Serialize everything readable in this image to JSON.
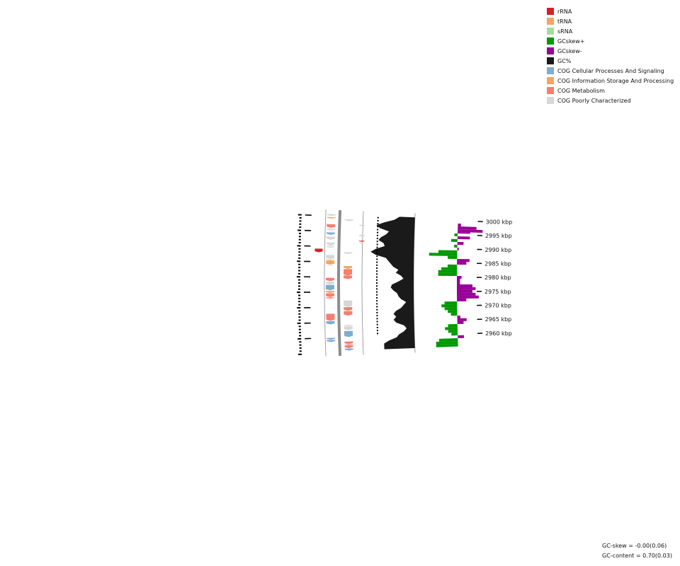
{
  "ticks": [
    {
      "label": "3000 kbp",
      "value": 3000
    },
    {
      "label": "2995 kbp",
      "value": 2995
    },
    {
      "label": "2990 kbp",
      "value": 2990
    },
    {
      "label": "2985 kbp",
      "value": 2985
    },
    {
      "label": "2980 kbp",
      "value": 2980
    },
    {
      "label": "2975 kbp",
      "value": 2975
    },
    {
      "label": "2970 kbp",
      "value": 2970
    },
    {
      "label": "2965 kbp",
      "value": 2965
    },
    {
      "label": "2960 kbp",
      "value": 2960
    }
  ],
  "legend": [
    {
      "label": "rRNA",
      "color": "#d62027"
    },
    {
      "label": "tRNA",
      "color": "#f5a55d"
    },
    {
      "label": "sRNA",
      "color": "#a6dba0"
    },
    {
      "label": "GCskew+",
      "color": "#009900"
    },
    {
      "label": "GCskew-",
      "color": "#990099"
    },
    {
      "label": "GC%",
      "color": "#1a1a1a"
    },
    {
      "label": "COG Cellular Processes And Signaling",
      "color": "#7eadd1"
    },
    {
      "label": "COG Information Storage And Processing",
      "color": "#f5a55d"
    },
    {
      "label": "COG Metabolism",
      "color": "#f47f72"
    },
    {
      "label": "COG Poorly Characterized",
      "color": "#d7d7d7"
    }
  ],
  "stats": {
    "gc_skew": "GC-skew = -0.00(0.06)",
    "gc_content": "GC-content = 0.70(0.03)"
  },
  "features": [
    {
      "track": "outer",
      "start": 3000.6,
      "end": 3000.0,
      "cat": "COG Poorly Characterized"
    },
    {
      "track": "outer",
      "start": 2999.6,
      "end": 2999.2,
      "cat": "tRNA"
    },
    {
      "track": "outer",
      "start": 2997.3,
      "end": 2996.1,
      "cat": "COG Metabolism"
    },
    {
      "track": "outer",
      "start": 2995.9,
      "end": 2995.6,
      "cat": "COG Poorly Characterized"
    },
    {
      "track": "outer",
      "start": 2995.6,
      "end": 2995.3,
      "cat": "COG Poorly Characterized"
    },
    {
      "track": "outer",
      "start": 2994.6,
      "end": 2993.8,
      "cat": "COG Cellular Processes And Signaling"
    },
    {
      "track": "outer",
      "start": 2993.2,
      "end": 2992.2,
      "cat": "COG Poorly Characterized"
    },
    {
      "track": "outer",
      "start": 2991.3,
      "end": 2990.5,
      "cat": "COG Poorly Characterized"
    },
    {
      "track": "outer",
      "start": 2990.5,
      "end": 2990.2,
      "cat": "COG Poorly Characterized"
    },
    {
      "track": "outer",
      "start": 2990.0,
      "end": 2989.6,
      "cat": "COG Poorly Characterized"
    },
    {
      "track": "outer",
      "start": 2987.2,
      "end": 2985.8,
      "cat": "COG Poorly Characterized"
    },
    {
      "track": "outer",
      "start": 2985.6,
      "end": 2985.2,
      "cat": "tRNA"
    },
    {
      "track": "outer",
      "start": 2985.2,
      "end": 2984.0,
      "cat": "tRNA"
    },
    {
      "track": "outer",
      "start": 2983.8,
      "end": 2983.6,
      "cat": "COG Poorly Characterized"
    },
    {
      "track": "outer",
      "start": 2979.7,
      "end": 2978.6,
      "cat": "COG Metabolism"
    },
    {
      "track": "outer",
      "start": 2978.4,
      "end": 2977.5,
      "cat": "COG Poorly Characterized"
    },
    {
      "track": "outer",
      "start": 2977.4,
      "end": 2975.6,
      "cat": "COG Cellular Processes And Signaling"
    },
    {
      "track": "outer",
      "start": 2975.4,
      "end": 2974.7,
      "cat": "tRNA"
    },
    {
      "track": "outer",
      "start": 2974.6,
      "end": 2973.4,
      "cat": "COG Metabolism"
    },
    {
      "track": "outer",
      "start": 2973.3,
      "end": 2972.9,
      "cat": "COG Metabolism"
    },
    {
      "track": "outer",
      "start": 2967.9,
      "end": 2965.6,
      "cat": "COG Metabolism"
    },
    {
      "track": "outer",
      "start": 2965.5,
      "end": 2964.4,
      "cat": "COG Cellular Processes And Signaling"
    },
    {
      "track": "outer",
      "start": 2960.0,
      "end": 2959.4,
      "cat": "COG Cellular Processes And Signaling"
    },
    {
      "track": "outer",
      "start": 2959.3,
      "end": 2958.6,
      "cat": "COG Cellular Processes And Signaling"
    },
    {
      "track": "outer",
      "start": 2989.2,
      "end": 2988.0,
      "cat": "rRNA",
      "ring": "rna-outer"
    },
    {
      "track": "inner",
      "start": 2999.1,
      "end": 2998.5,
      "cat": "COG Poorly Characterized"
    },
    {
      "track": "inner",
      "start": 2988.2,
      "end": 2987.6,
      "cat": "COG Poorly Characterized"
    },
    {
      "track": "inner",
      "start": 2983.6,
      "end": 2982.7,
      "cat": "tRNA"
    },
    {
      "track": "inner",
      "start": 2982.6,
      "end": 2980.5,
      "cat": "COG Metabolism"
    },
    {
      "track": "inner",
      "start": 2980.5,
      "end": 2979.3,
      "cat": "COG Metabolism"
    },
    {
      "track": "inner",
      "start": 2972.2,
      "end": 2970.1,
      "cat": "COG Poorly Characterized"
    },
    {
      "track": "inner",
      "start": 2970.0,
      "end": 2968.8,
      "cat": "COG Metabolism"
    },
    {
      "track": "inner",
      "start": 2968.7,
      "end": 2967.2,
      "cat": "COG Metabolism"
    },
    {
      "track": "inner",
      "start": 2964.1,
      "end": 2963.7,
      "cat": "COG Poorly Characterized"
    },
    {
      "track": "inner",
      "start": 2963.6,
      "end": 2962.4,
      "cat": "COG Poorly Characterized"
    },
    {
      "track": "inner",
      "start": 2962.1,
      "end": 2960.1,
      "cat": "COG Cellular Processes And Signaling"
    },
    {
      "track": "inner",
      "start": 2958.6,
      "end": 2957.7,
      "cat": "COG Metabolism"
    },
    {
      "track": "inner",
      "start": 2957.6,
      "end": 2957.2,
      "cat": "COG Metabolism"
    },
    {
      "track": "inner",
      "start": 2957.2,
      "end": 2956.4,
      "cat": "COG Metabolism"
    },
    {
      "track": "inner",
      "start": 2956.3,
      "end": 2955.6,
      "cat": "COG Cellular Processes And Signaling"
    },
    {
      "track": "inner2",
      "start": 2997.4,
      "end": 2997.0,
      "cat": "COG Poorly Characterized"
    },
    {
      "track": "inner2",
      "start": 2994.1,
      "end": 2993.8,
      "cat": "COG Poorly Characterized"
    },
    {
      "track": "inner2",
      "start": 2993.8,
      "end": 2993.5,
      "cat": "COG Poorly Characterized"
    },
    {
      "track": "inner2",
      "start": 2991.5,
      "end": 2991.2,
      "cat": "COG Poorly Characterized"
    },
    {
      "track": "inner2",
      "start": 2992.1,
      "end": 2991.8,
      "cat": "rRNA"
    }
  ],
  "gc_content": [
    {
      "kbp": 3000.6,
      "v": 0.62
    },
    {
      "kbp": 2999.5,
      "v": 0.66
    },
    {
      "kbp": 2998.5,
      "v": 0.74
    },
    {
      "kbp": 2997.5,
      "v": 0.8
    },
    {
      "kbp": 2996.5,
      "v": 0.77
    },
    {
      "kbp": 2995.5,
      "v": 0.7
    },
    {
      "kbp": 2994.5,
      "v": 0.72
    },
    {
      "kbp": 2993.5,
      "v": 0.76
    },
    {
      "kbp": 2992.5,
      "v": 0.78
    },
    {
      "kbp": 2991.5,
      "v": 0.74
    },
    {
      "kbp": 2990.5,
      "v": 0.73
    },
    {
      "kbp": 2989.5,
      "v": 0.8
    },
    {
      "kbp": 2988.5,
      "v": 0.84
    },
    {
      "kbp": 2987.5,
      "v": 0.8
    },
    {
      "kbp": 2986.5,
      "v": 0.72
    },
    {
      "kbp": 2985.5,
      "v": 0.7
    },
    {
      "kbp": 2984.5,
      "v": 0.68
    },
    {
      "kbp": 2983.5,
      "v": 0.66
    },
    {
      "kbp": 2982.5,
      "v": 0.62
    },
    {
      "kbp": 2981.5,
      "v": 0.64
    },
    {
      "kbp": 2980.5,
      "v": 0.6
    },
    {
      "kbp": 2979.5,
      "v": 0.58
    },
    {
      "kbp": 2978.5,
      "v": 0.62
    },
    {
      "kbp": 2977.5,
      "v": 0.67
    },
    {
      "kbp": 2976.5,
      "v": 0.68
    },
    {
      "kbp": 2975.5,
      "v": 0.66
    },
    {
      "kbp": 2974.5,
      "v": 0.63
    },
    {
      "kbp": 2973.5,
      "v": 0.62
    },
    {
      "kbp": 2972.5,
      "v": 0.6
    },
    {
      "kbp": 2971.5,
      "v": 0.56
    },
    {
      "kbp": 2970.5,
      "v": 0.58
    },
    {
      "kbp": 2969.5,
      "v": 0.6
    },
    {
      "kbp": 2968.5,
      "v": 0.64
    },
    {
      "kbp": 2967.5,
      "v": 0.66
    },
    {
      "kbp": 2966.5,
      "v": 0.64
    },
    {
      "kbp": 2965.5,
      "v": 0.66
    },
    {
      "kbp": 2964.5,
      "v": 0.64
    },
    {
      "kbp": 2963.5,
      "v": 0.58
    },
    {
      "kbp": 2962.5,
      "v": 0.56
    },
    {
      "kbp": 2961.5,
      "v": 0.58
    },
    {
      "kbp": 2960.5,
      "v": 0.62
    },
    {
      "kbp": 2959.5,
      "v": 0.64
    },
    {
      "kbp": 2958.5,
      "v": 0.7
    },
    {
      "kbp": 2957.5,
      "v": 0.74
    },
    {
      "kbp": 2956.5,
      "v": 0.74
    },
    {
      "kbp": 2955.6,
      "v": 0.74
    }
  ],
  "gc_skew": [
    {
      "kbp": 3000.6,
      "v": 0.0
    },
    {
      "kbp": 2999.0,
      "v": -0.02
    },
    {
      "kbp": 2998.0,
      "v": -0.12
    },
    {
      "kbp": 2997.0,
      "v": -0.16
    },
    {
      "kbp": 2996.0,
      "v": -0.08
    },
    {
      "kbp": 2995.5,
      "v": 0.02
    },
    {
      "kbp": 2994.5,
      "v": -0.08
    },
    {
      "kbp": 2993.5,
      "v": 0.04
    },
    {
      "kbp": 2992.5,
      "v": -0.04
    },
    {
      "kbp": 2991.5,
      "v": 0.02
    },
    {
      "kbp": 2990.5,
      "v": -0.01
    },
    {
      "kbp": 2989.5,
      "v": 0.12
    },
    {
      "kbp": 2988.5,
      "v": 0.18
    },
    {
      "kbp": 2987.5,
      "v": 0.06
    },
    {
      "kbp": 2986.5,
      "v": -0.08
    },
    {
      "kbp": 2985.5,
      "v": -0.06
    },
    {
      "kbp": 2984.5,
      "v": 0.06
    },
    {
      "kbp": 2983.5,
      "v": 0.1
    },
    {
      "kbp": 2982.5,
      "v": 0.12
    },
    {
      "kbp": 2981.5,
      "v": 0.12
    },
    {
      "kbp": 2980.5,
      "v": -0.03
    },
    {
      "kbp": 2979.5,
      "v": -0.02
    },
    {
      "kbp": 2978.5,
      "v": -0.02
    },
    {
      "kbp": 2977.5,
      "v": -0.1
    },
    {
      "kbp": 2976.5,
      "v": -0.12
    },
    {
      "kbp": 2975.5,
      "v": -0.1
    },
    {
      "kbp": 2974.5,
      "v": -0.12
    },
    {
      "kbp": 2973.5,
      "v": -0.14
    },
    {
      "kbp": 2972.5,
      "v": -0.06
    },
    {
      "kbp": 2971.5,
      "v": 0.08
    },
    {
      "kbp": 2970.5,
      "v": 0.1
    },
    {
      "kbp": 2969.5,
      "v": 0.08
    },
    {
      "kbp": 2968.5,
      "v": 0.06
    },
    {
      "kbp": 2967.5,
      "v": 0.04
    },
    {
      "kbp": 2966.5,
      "v": -0.02
    },
    {
      "kbp": 2965.5,
      "v": -0.06
    },
    {
      "kbp": 2964.5,
      "v": -0.04
    },
    {
      "kbp": 2963.5,
      "v": 0.06
    },
    {
      "kbp": 2962.5,
      "v": 0.08
    },
    {
      "kbp": 2961.5,
      "v": 0.06
    },
    {
      "kbp": 2960.5,
      "v": 0.04
    },
    {
      "kbp": 2959.5,
      "v": -0.04
    },
    {
      "kbp": 2958.5,
      "v": 0.12
    },
    {
      "kbp": 2957.5,
      "v": 0.14
    },
    {
      "kbp": 2956.5,
      "v": 0.14
    },
    {
      "kbp": 2955.6,
      "v": 0.14
    }
  ]
}
